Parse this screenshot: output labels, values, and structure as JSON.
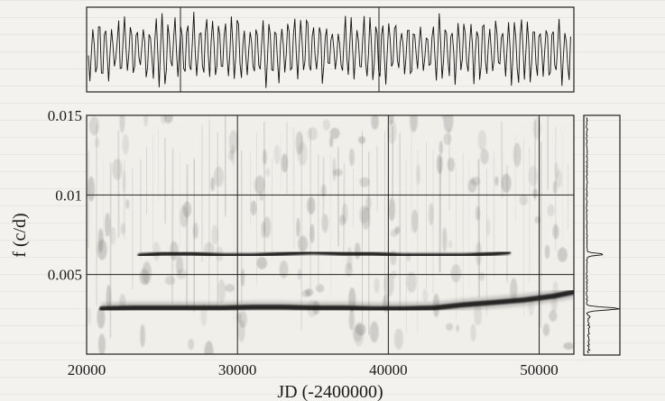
{
  "chart_data": [
    {
      "type": "line",
      "panel": "light curve",
      "xlim": [
        20000,
        52300
      ],
      "grid": true,
      "title": "",
      "xlabel": "",
      "ylabel": ""
    },
    {
      "type": "heatmap",
      "panel": "time-frequency diagram",
      "xlabel": "JD (-2400000)",
      "ylabel": "f (c/d)",
      "xlim": [
        20000,
        52300
      ],
      "ylim": [
        0,
        0.015
      ],
      "x_ticks": [
        20000,
        30000,
        40000,
        50000
      ],
      "x_tick_labels": [
        "20000",
        "30000",
        "40000",
        "50000"
      ],
      "y_ticks": [
        0.005,
        0.01,
        0.015
      ],
      "y_tick_labels": [
        "0.005",
        "0.01",
        "0.015"
      ],
      "grid": true,
      "ridges": [
        {
          "name": "",
          "x": [
            21000,
            23000,
            25000,
            27000,
            29000,
            31000,
            33000,
            35000,
            37000,
            39000,
            41000,
            43000,
            45000,
            47000,
            49000,
            51000,
            52300
          ],
          "y": [
            0.00285,
            0.0029,
            0.0029,
            0.0029,
            0.0029,
            0.00295,
            0.00295,
            0.0029,
            0.0029,
            0.00285,
            0.00285,
            0.0029,
            0.0031,
            0.00325,
            0.0034,
            0.00365,
            0.0039
          ]
        },
        {
          "name": "",
          "x": [
            23500,
            25000,
            27000,
            29000,
            31000,
            33000,
            35000,
            37000,
            39000,
            41000,
            43000,
            45000,
            47000,
            48000
          ],
          "y": [
            0.0062,
            0.0063,
            0.0063,
            0.0062,
            0.0062,
            0.0063,
            0.0064,
            0.0063,
            0.0063,
            0.0062,
            0.0062,
            0.0062,
            0.0063,
            0.0064
          ]
        }
      ]
    },
    {
      "type": "line",
      "panel": "power spectrum",
      "ylim": [
        0,
        0.015
      ],
      "peaks": [
        0.0029,
        0.0063
      ],
      "title": "",
      "xlabel": "",
      "ylabel": ""
    }
  ]
}
